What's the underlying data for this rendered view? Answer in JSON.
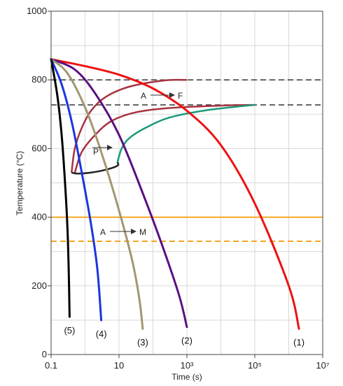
{
  "chart_data": {
    "type": "line",
    "x_scale": "log",
    "xlabel": "Time (s)",
    "ylabel": "Temperature (°C)",
    "xlim": [
      0.1,
      10000000
    ],
    "ylim": [
      0,
      1000
    ],
    "x_ticks": [
      {
        "value": 0.1,
        "label": "0.1"
      },
      {
        "value": 10,
        "label": "10"
      },
      {
        "value": 1000,
        "label": "10³"
      },
      {
        "value": 100000,
        "label": "10⁵"
      },
      {
        "value": 10000000,
        "label": "10⁷"
      }
    ],
    "y_ticks": [
      {
        "value": 0,
        "label": "0"
      },
      {
        "value": 200,
        "label": "200"
      },
      {
        "value": 400,
        "label": "400"
      },
      {
        "value": 600,
        "label": "600"
      },
      {
        "value": 800,
        "label": "800"
      },
      {
        "value": 1000,
        "label": "1000"
      }
    ],
    "grid": true,
    "reference_lines": [
      {
        "y": 800,
        "style": "dashed",
        "color": "#333333"
      },
      {
        "y": 727,
        "style": "dashed",
        "color": "#333333"
      },
      {
        "y": 400,
        "style": "solid",
        "color": "#f5a623"
      },
      {
        "y": 330,
        "style": "dashed",
        "color": "#f5a623"
      }
    ],
    "transformation_curves": [
      {
        "color": "#a83240",
        "points": [
          [
            0.4,
            530
          ],
          [
            0.5,
            600
          ],
          [
            0.8,
            660
          ],
          [
            1.5,
            710
          ],
          [
            4,
            750
          ],
          [
            20,
            780
          ],
          [
            200,
            798
          ],
          [
            1000,
            800
          ]
        ]
      },
      {
        "color": "#a83240",
        "points": [
          [
            0.5,
            530
          ],
          [
            0.8,
            590
          ],
          [
            2,
            640
          ],
          [
            6,
            680
          ],
          [
            30,
            705
          ],
          [
            300,
            718
          ],
          [
            10000,
            725
          ],
          [
            100000,
            727
          ]
        ]
      },
      {
        "color": "#1a9a7a",
        "points": [
          [
            9,
            560
          ],
          [
            12,
            600
          ],
          [
            20,
            630
          ],
          [
            60,
            660
          ],
          [
            300,
            690
          ],
          [
            3000,
            710
          ],
          [
            30000,
            722
          ],
          [
            100000,
            727
          ]
        ]
      },
      {
        "color": "#222222",
        "points": [
          [
            0.4,
            530
          ],
          [
            0.6,
            527
          ],
          [
            1.5,
            530
          ],
          [
            4,
            538
          ],
          [
            9,
            550
          ],
          [
            9,
            560
          ]
        ]
      }
    ],
    "series": [
      {
        "label": "(1)",
        "color": "#ee1111",
        "points": [
          [
            0.1,
            860
          ],
          [
            1,
            840
          ],
          [
            10,
            815
          ],
          [
            100,
            775
          ],
          [
            1000,
            710
          ],
          [
            10000,
            610
          ],
          [
            100000,
            440
          ],
          [
            1000000,
            200
          ],
          [
            2000000,
            75
          ]
        ]
      },
      {
        "label": "(2)",
        "color": "#5a1080",
        "points": [
          [
            0.1,
            860
          ],
          [
            0.5,
            830
          ],
          [
            2,
            760
          ],
          [
            10,
            640
          ],
          [
            50,
            470
          ],
          [
            200,
            310
          ],
          [
            600,
            170
          ],
          [
            1000,
            80
          ]
        ]
      },
      {
        "label": "(3)",
        "color": "#a09870",
        "points": [
          [
            0.1,
            860
          ],
          [
            0.3,
            820
          ],
          [
            1,
            720
          ],
          [
            3,
            590
          ],
          [
            10,
            420
          ],
          [
            25,
            270
          ],
          [
            40,
            160
          ],
          [
            50,
            75
          ]
        ]
      },
      {
        "label": "(4)",
        "color": "#1a35e0",
        "points": [
          [
            0.1,
            860
          ],
          [
            0.2,
            790
          ],
          [
            0.4,
            680
          ],
          [
            0.8,
            530
          ],
          [
            1.5,
            380
          ],
          [
            2.3,
            250
          ],
          [
            3,
            100
          ]
        ]
      },
      {
        "label": "(5)",
        "color": "#000000",
        "points": [
          [
            0.1,
            860
          ],
          [
            0.15,
            760
          ],
          [
            0.2,
            650
          ],
          [
            0.25,
            520
          ],
          [
            0.3,
            380
          ],
          [
            0.33,
            250
          ],
          [
            0.35,
            110
          ]
        ]
      }
    ],
    "annotations": [
      {
        "text": "A",
        "arrow_to": "F"
      },
      {
        "text": "P",
        "arrow": true
      },
      {
        "text": "A",
        "arrow_to": "M"
      }
    ]
  }
}
